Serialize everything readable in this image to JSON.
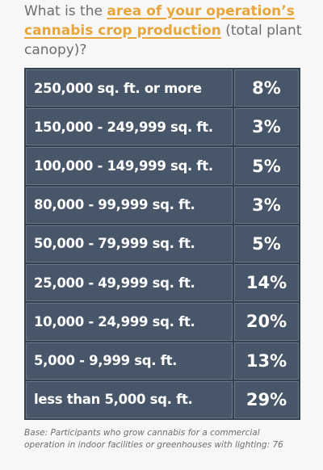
{
  "question": {
    "before": "What is the ",
    "highlight": "area of your operation’s cannabis crop production",
    "after": " (total plant canopy)?"
  },
  "table": {
    "rows": [
      [
        "250,000 sq. ft. or more",
        "8%"
      ],
      [
        "150,000 - 249,999 sq. ft.",
        "3%"
      ],
      [
        "100,000 - 149,999 sq. ft.",
        "5%"
      ],
      [
        "80,000 - 99,999 sq. ft.",
        "3%"
      ],
      [
        "50,000 - 79,999 sq. ft.",
        "5%"
      ],
      [
        "25,000 - 49,999 sq. ft.",
        "14%"
      ],
      [
        "10,000 - 24,999 sq. ft.",
        "20%"
      ],
      [
        "5,000 - 9,999 sq. ft.",
        "13%"
      ],
      [
        "less than 5,000 sq. ft.",
        "29%"
      ]
    ]
  },
  "footnote": "Base: Participants who grow cannabis for a commercial operation in indoor facilities or greenhouses with lighting: 76"
}
